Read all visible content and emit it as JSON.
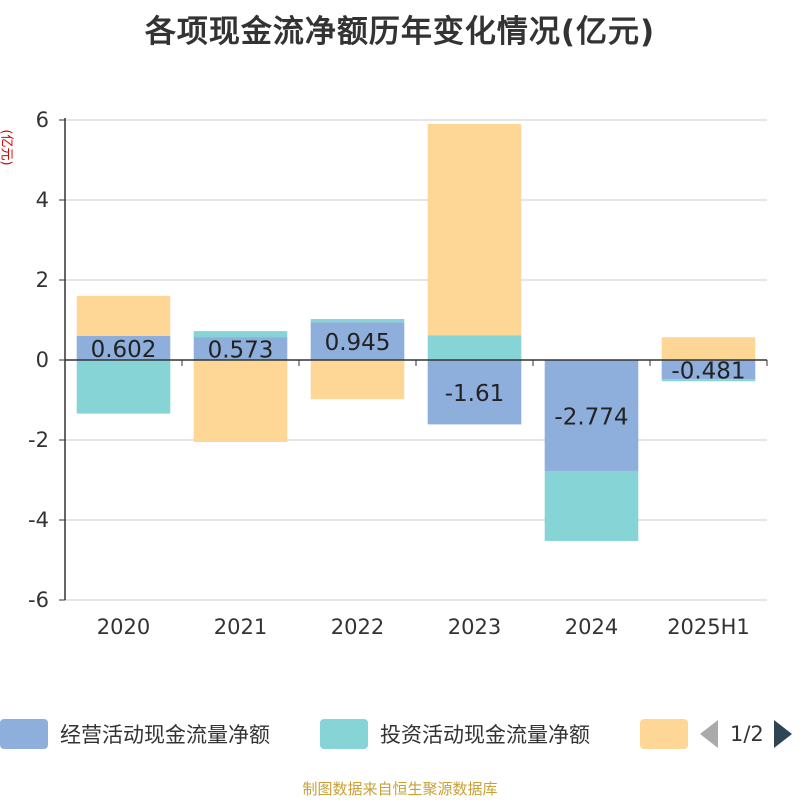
{
  "title": "各项现金流净额历年变化情况(亿元)",
  "yunit": "(亿元)",
  "source": "制图数据来自恒生聚源数据库",
  "legend": {
    "items": [
      {
        "label": "经营活动现金流量净额",
        "color": "#8eaedb"
      },
      {
        "label": "投资活动现金流量净额",
        "color": "#87d4d6"
      },
      {
        "label": "",
        "color": "#fed797"
      }
    ],
    "page": "1/2"
  },
  "chart_data": {
    "type": "bar",
    "stacked": true,
    "categories": [
      "2020",
      "2021",
      "2022",
      "2023",
      "2024",
      "2025H1"
    ],
    "ylim": [
      -6,
      6
    ],
    "yticks": [
      -6,
      -4,
      -2,
      0,
      2,
      4,
      6
    ],
    "grid": true,
    "legend_position": "bottom",
    "series": [
      {
        "name": "经营活动现金流量净额",
        "color": "#8eaedb",
        "values": [
          0.602,
          0.573,
          0.945,
          -1.61,
          -2.774,
          -0.481
        ],
        "labels": true
      },
      {
        "name": "投资活动现金流量净额",
        "color": "#87d4d6",
        "values": [
          -1.34,
          0.15,
          0.08,
          0.62,
          -1.75,
          -0.05
        ]
      },
      {
        "color": "#fed797",
        "values": [
          1.0,
          -2.05,
          -0.98,
          5.28,
          0.0,
          0.57
        ]
      }
    ]
  }
}
